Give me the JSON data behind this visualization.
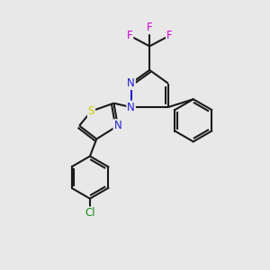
{
  "bg_color": "#e8e8e8",
  "bond_color": "#1a1a1a",
  "N_color": "#2020cc",
  "S_color": "#cccc00",
  "Cl_color": "#1a8c1a",
  "F_color": "#cc00cc",
  "lw": 1.5,
  "xlim": [
    0,
    10
  ],
  "ylim": [
    0,
    10
  ]
}
